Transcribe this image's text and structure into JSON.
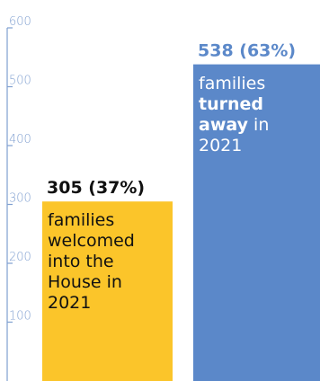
{
  "chart_data": {
    "type": "bar",
    "ylim": [
      0,
      600
    ],
    "yticks": [
      100,
      200,
      300,
      400,
      500,
      600
    ],
    "categories": [
      "welcomed",
      "turned away"
    ],
    "values": [
      305,
      538
    ],
    "value_labels": [
      "305 (37%)",
      "538 (63%)"
    ],
    "descriptions": [
      {
        "parts": [
          {
            "text": "families welcomed into the House in 2021",
            "bold": false
          }
        ]
      },
      {
        "parts": [
          {
            "text": "families ",
            "bold": false
          },
          {
            "text": "turned away",
            "bold": true
          },
          {
            "text": " in 2021",
            "bold": false
          }
        ]
      }
    ],
    "grid": false,
    "legend": "none"
  },
  "colors": {
    "axis": "#7f9fd0",
    "tick_text": "#7f9fd0",
    "bar_welcomed": "#fbc52a",
    "bar_turned_away": "#5b88c9",
    "label_welcomed": "#111111",
    "label_turned_away": "#5b88c9",
    "desc_welcomed": "#111111",
    "desc_turned_away": "#ffffff"
  }
}
